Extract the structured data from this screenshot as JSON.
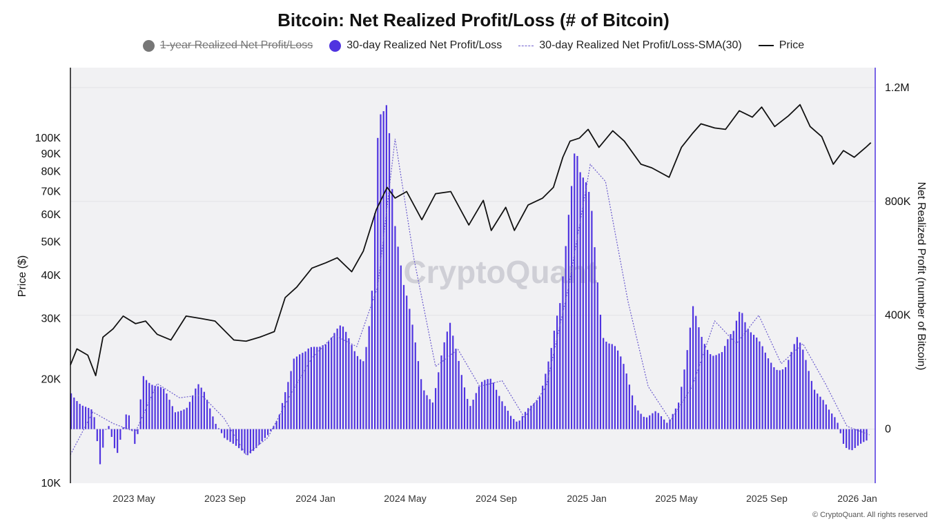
{
  "title": "Bitcoin: Net Realized Profit/Loss (# of Bitcoin)",
  "legend": [
    {
      "label": "1-year Realized Net Profit/Loss",
      "marker": "dot",
      "color": "#777777",
      "disabled": true
    },
    {
      "label": "30-day Realized Net Profit/Loss",
      "marker": "dot",
      "color": "#4f33e0",
      "disabled": false
    },
    {
      "label": "30-day Realized Net Profit/Loss-SMA(30)",
      "marker": "dash",
      "color": "#6a5acd",
      "disabled": false
    },
    {
      "label": "Price",
      "marker": "line",
      "color": "#111111",
      "disabled": false
    }
  ],
  "watermark": "CryptoQuant",
  "copyright": "© CryptoQuant. All rights reserved",
  "chart_data": {
    "type": "bar",
    "x_axis": {
      "ticks": [
        "2023 May",
        "2023 Sep",
        "2024 Jan",
        "2024 May",
        "2024 Sep",
        "2025 Jan",
        "2025 May",
        "2025 Sep",
        "2026 Jan"
      ],
      "range": [
        "2023-01",
        "2026-01"
      ]
    },
    "y_left": {
      "label": "Price ($)",
      "scale": "log",
      "range": [
        10000,
        160000
      ],
      "ticks": [
        {
          "v": 10000,
          "label": "10K"
        },
        {
          "v": 20000,
          "label": "20K"
        },
        {
          "v": 30000,
          "label": "30K"
        },
        {
          "v": 40000,
          "label": "40K"
        },
        {
          "v": 50000,
          "label": "50K"
        },
        {
          "v": 60000,
          "label": "60K"
        },
        {
          "v": 70000,
          "label": "70K"
        },
        {
          "v": 80000,
          "label": "80K"
        },
        {
          "v": 90000,
          "label": "90K"
        },
        {
          "v": 100000,
          "label": "100K"
        }
      ]
    },
    "y_right": {
      "label": "Net Realized Profit (number of Bitcoin)",
      "range": [
        -190000,
        1270000
      ],
      "ticks": [
        {
          "v": 0,
          "label": "0"
        },
        {
          "v": 400000,
          "label": "400K"
        },
        {
          "v": 800000,
          "label": "800K"
        },
        {
          "v": 1200000,
          "label": "1.2M"
        }
      ]
    },
    "grid": true,
    "series": [
      {
        "name": "Price",
        "type": "line",
        "axis": "left",
        "color": "#111111",
        "points": [
          [
            "2023-01-01",
            22000
          ],
          [
            "2023-01-10",
            24500
          ],
          [
            "2023-01-25",
            23500
          ],
          [
            "2023-02-05",
            20500
          ],
          [
            "2023-02-15",
            26500
          ],
          [
            "2023-03-01",
            28000
          ],
          [
            "2023-03-15",
            30500
          ],
          [
            "2023-04-01",
            29000
          ],
          [
            "2023-04-15",
            29500
          ],
          [
            "2023-05-01",
            27000
          ],
          [
            "2023-05-20",
            26000
          ],
          [
            "2023-06-10",
            30500
          ],
          [
            "2023-07-01",
            30000
          ],
          [
            "2023-07-20",
            29500
          ],
          [
            "2023-08-15",
            26000
          ],
          [
            "2023-09-01",
            25800
          ],
          [
            "2023-09-20",
            26500
          ],
          [
            "2023-10-10",
            27500
          ],
          [
            "2023-10-25",
            34500
          ],
          [
            "2023-11-10",
            37000
          ],
          [
            "2023-12-01",
            42000
          ],
          [
            "2023-12-20",
            43500
          ],
          [
            "2024-01-05",
            45000
          ],
          [
            "2024-01-25",
            41000
          ],
          [
            "2024-02-10",
            47000
          ],
          [
            "2024-02-28",
            62000
          ],
          [
            "2024-03-14",
            72000
          ],
          [
            "2024-03-25",
            67000
          ],
          [
            "2024-04-10",
            70000
          ],
          [
            "2024-05-01",
            58000
          ],
          [
            "2024-05-20",
            69000
          ],
          [
            "2024-06-10",
            70000
          ],
          [
            "2024-07-05",
            56000
          ],
          [
            "2024-07-25",
            66000
          ],
          [
            "2024-08-05",
            54000
          ],
          [
            "2024-08-25",
            63000
          ],
          [
            "2024-09-06",
            54000
          ],
          [
            "2024-09-25",
            64000
          ],
          [
            "2024-10-15",
            67000
          ],
          [
            "2024-10-30",
            72000
          ],
          [
            "2024-11-12",
            88000
          ],
          [
            "2024-11-22",
            98000
          ],
          [
            "2024-12-05",
            100000
          ],
          [
            "2024-12-17",
            106000
          ],
          [
            "2025-01-01",
            94000
          ],
          [
            "2025-01-20",
            105000
          ],
          [
            "2025-02-05",
            98000
          ],
          [
            "2025-02-28",
            84000
          ],
          [
            "2025-03-15",
            82000
          ],
          [
            "2025-04-08",
            77000
          ],
          [
            "2025-04-25",
            94000
          ],
          [
            "2025-05-10",
            103000
          ],
          [
            "2025-05-22",
            110000
          ],
          [
            "2025-06-10",
            107000
          ],
          [
            "2025-06-25",
            106000
          ],
          [
            "2025-07-14",
            120000
          ],
          [
            "2025-08-01",
            115000
          ],
          [
            "2025-08-14",
            123000
          ],
          [
            "2025-09-01",
            108000
          ],
          [
            "2025-09-20",
            116000
          ],
          [
            "2025-10-06",
            125000
          ],
          [
            "2025-10-20",
            108000
          ],
          [
            "2025-11-05",
            101000
          ],
          [
            "2025-11-21",
            84000
          ],
          [
            "2025-12-05",
            92000
          ],
          [
            "2025-12-20",
            88000
          ],
          [
            "2026-01-05",
            94000
          ],
          [
            "2026-01-12",
            97000
          ]
        ]
      },
      {
        "name": "30-day Realized Net Profit/Loss",
        "type": "bar",
        "axis": "right",
        "color": "#4f33e0",
        "points": [
          [
            "2023-01-01",
            130000
          ],
          [
            "2023-01-15",
            90000
          ],
          [
            "2023-02-01",
            60000
          ],
          [
            "2023-02-10",
            -130000
          ],
          [
            "2023-02-20",
            30000
          ],
          [
            "2023-03-05",
            -90000
          ],
          [
            "2023-03-20",
            70000
          ],
          [
            "2023-04-01",
            -80000
          ],
          [
            "2023-04-10",
            200000
          ],
          [
            "2023-04-25",
            160000
          ],
          [
            "2023-05-10",
            130000
          ],
          [
            "2023-05-25",
            60000
          ],
          [
            "2023-06-10",
            80000
          ],
          [
            "2023-06-25",
            150000
          ],
          [
            "2023-07-05",
            120000
          ],
          [
            "2023-07-20",
            20000
          ],
          [
            "2023-08-01",
            -30000
          ],
          [
            "2023-08-20",
            -70000
          ],
          [
            "2023-09-01",
            -90000
          ],
          [
            "2023-09-15",
            -60000
          ],
          [
            "2023-10-01",
            -20000
          ],
          [
            "2023-10-15",
            40000
          ],
          [
            "2023-10-25",
            150000
          ],
          [
            "2023-11-05",
            260000
          ],
          [
            "2023-11-20",
            250000
          ],
          [
            "2023-12-01",
            280000
          ],
          [
            "2023-12-15",
            320000
          ],
          [
            "2024-01-01",
            330000
          ],
          [
            "2024-01-10",
            340000
          ],
          [
            "2024-01-25",
            300000
          ],
          [
            "2024-02-10",
            250000
          ],
          [
            "2024-02-20",
            400000
          ],
          [
            "2024-03-01",
            1010000
          ],
          [
            "2024-03-08",
            1090000
          ],
          [
            "2024-03-14",
            1190000
          ],
          [
            "2024-03-22",
            820000
          ],
          [
            "2024-04-05",
            500000
          ],
          [
            "2024-04-20",
            300000
          ],
          [
            "2024-05-01",
            150000
          ],
          [
            "2024-05-15",
            100000
          ],
          [
            "2024-05-28",
            260000
          ],
          [
            "2024-06-08",
            350000
          ],
          [
            "2024-06-20",
            250000
          ],
          [
            "2024-07-05",
            80000
          ],
          [
            "2024-07-20",
            150000
          ],
          [
            "2024-08-05",
            180000
          ],
          [
            "2024-08-20",
            100000
          ],
          [
            "2024-09-01",
            40000
          ],
          [
            "2024-09-10",
            20000
          ],
          [
            "2024-09-25",
            80000
          ],
          [
            "2024-10-10",
            120000
          ],
          [
            "2024-10-25",
            250000
          ],
          [
            "2024-11-08",
            450000
          ],
          [
            "2024-11-20",
            850000
          ],
          [
            "2024-11-28",
            1050000
          ],
          [
            "2024-12-06",
            860000
          ],
          [
            "2024-12-20",
            750000
          ],
          [
            "2025-01-05",
            350000
          ],
          [
            "2025-01-20",
            300000
          ],
          [
            "2025-02-05",
            200000
          ],
          [
            "2025-02-20",
            80000
          ],
          [
            "2025-03-05",
            40000
          ],
          [
            "2025-03-20",
            60000
          ],
          [
            "2025-04-05",
            20000
          ],
          [
            "2025-04-20",
            100000
          ],
          [
            "2025-05-01",
            250000
          ],
          [
            "2025-05-10",
            400000
          ],
          [
            "2025-05-20",
            330000
          ],
          [
            "2025-06-05",
            280000
          ],
          [
            "2025-06-20",
            260000
          ],
          [
            "2025-07-05",
            330000
          ],
          [
            "2025-07-15",
            450000
          ],
          [
            "2025-07-25",
            380000
          ],
          [
            "2025-08-10",
            290000
          ],
          [
            "2025-08-20",
            240000
          ],
          [
            "2025-09-01",
            220000
          ],
          [
            "2025-09-15",
            230000
          ],
          [
            "2025-10-01",
            300000
          ],
          [
            "2025-10-10",
            260000
          ],
          [
            "2025-10-25",
            150000
          ],
          [
            "2025-11-05",
            110000
          ],
          [
            "2025-11-15",
            60000
          ],
          [
            "2025-11-25",
            30000
          ],
          [
            "2025-12-05",
            -60000
          ],
          [
            "2025-12-15",
            -70000
          ],
          [
            "2025-12-25",
            -55000
          ],
          [
            "2026-01-08",
            -40000
          ]
        ]
      },
      {
        "name": "30-day Realized Net Profit/Loss-SMA(30)",
        "type": "line",
        "axis": "right",
        "style": "dashed",
        "color": "#6a5acd",
        "points": [
          [
            "2023-01-01",
            -90000
          ],
          [
            "2023-02-01",
            60000
          ],
          [
            "2023-03-01",
            20000
          ],
          [
            "2023-04-01",
            -10000
          ],
          [
            "2023-05-01",
            160000
          ],
          [
            "2023-06-01",
            110000
          ],
          [
            "2023-07-01",
            120000
          ],
          [
            "2023-08-01",
            40000
          ],
          [
            "2023-09-01",
            -90000
          ],
          [
            "2023-10-01",
            -30000
          ],
          [
            "2023-11-01",
            120000
          ],
          [
            "2023-12-01",
            250000
          ],
          [
            "2024-01-01",
            330000
          ],
          [
            "2024-02-01",
            290000
          ],
          [
            "2024-03-01",
            500000
          ],
          [
            "2024-03-25",
            1020000
          ],
          [
            "2024-04-20",
            600000
          ],
          [
            "2024-05-20",
            220000
          ],
          [
            "2024-06-20",
            280000
          ],
          [
            "2024-07-20",
            150000
          ],
          [
            "2024-08-20",
            170000
          ],
          [
            "2024-09-20",
            40000
          ],
          [
            "2024-10-20",
            150000
          ],
          [
            "2024-11-20",
            500000
          ],
          [
            "2024-12-20",
            930000
          ],
          [
            "2025-01-10",
            870000
          ],
          [
            "2025-02-10",
            450000
          ],
          [
            "2025-03-10",
            150000
          ],
          [
            "2025-04-10",
            30000
          ],
          [
            "2025-05-10",
            150000
          ],
          [
            "2025-06-10",
            380000
          ],
          [
            "2025-07-10",
            300000
          ],
          [
            "2025-08-10",
            400000
          ],
          [
            "2025-09-10",
            230000
          ],
          [
            "2025-10-10",
            300000
          ],
          [
            "2025-11-10",
            160000
          ],
          [
            "2025-12-10",
            10000
          ],
          [
            "2026-01-10",
            -20000
          ]
        ]
      }
    ]
  }
}
